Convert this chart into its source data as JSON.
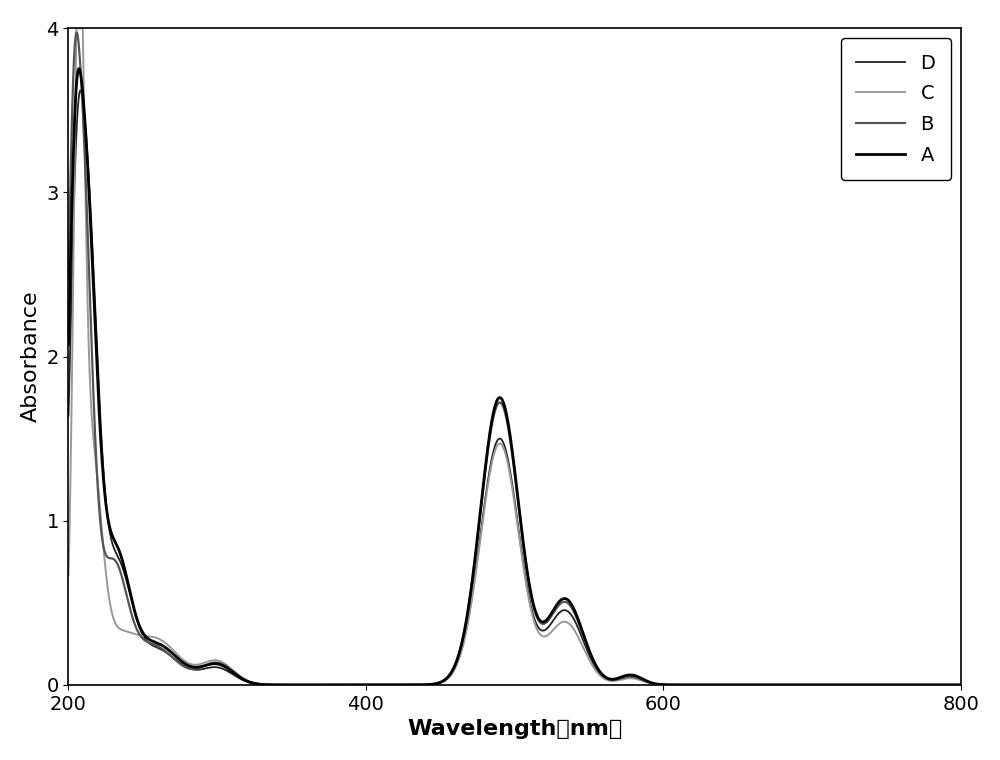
{
  "xlabel": "Wavelength（nm）",
  "ylabel": "Absorbance",
  "xlim": [
    200,
    800
  ],
  "ylim": [
    0,
    4
  ],
  "xticks": [
    200,
    400,
    600,
    800
  ],
  "yticks": [
    0,
    1,
    2,
    3,
    4
  ],
  "series": [
    {
      "label": "A",
      "color": "#000000",
      "linewidth": 2.0
    },
    {
      "label": "B",
      "color": "#555555",
      "linewidth": 1.6
    },
    {
      "label": "C",
      "color": "#999999",
      "linewidth": 1.4
    },
    {
      "label": "D",
      "color": "#222222",
      "linewidth": 1.3
    }
  ],
  "legend_loc": "upper right",
  "font_size": 14,
  "label_fontsize": 16,
  "tick_fontsize": 14,
  "background_color": "#ffffff",
  "figure_size": [
    10.0,
    7.6
  ],
  "dpi": 100
}
